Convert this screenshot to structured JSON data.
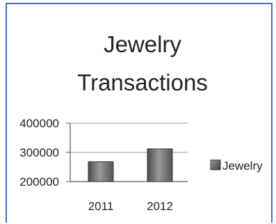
{
  "chart_data": {
    "type": "bar",
    "title_lines": [
      "Jewelry",
      "Transactions"
    ],
    "categories": [
      "2011",
      "2012"
    ],
    "series": [
      {
        "name": "Jewelry",
        "values": [
          268000,
          312000
        ]
      }
    ],
    "y_ticks": [
      "400000",
      "300000",
      "200000"
    ],
    "ylim": [
      200000,
      400000
    ],
    "grid": true,
    "legend_position": "right",
    "colors": {
      "bar_fill": "#6d6d6d",
      "bar_edge": "#3a3a3a",
      "frame": "#3a6fd0",
      "gridline": "#9a9a9a"
    }
  }
}
